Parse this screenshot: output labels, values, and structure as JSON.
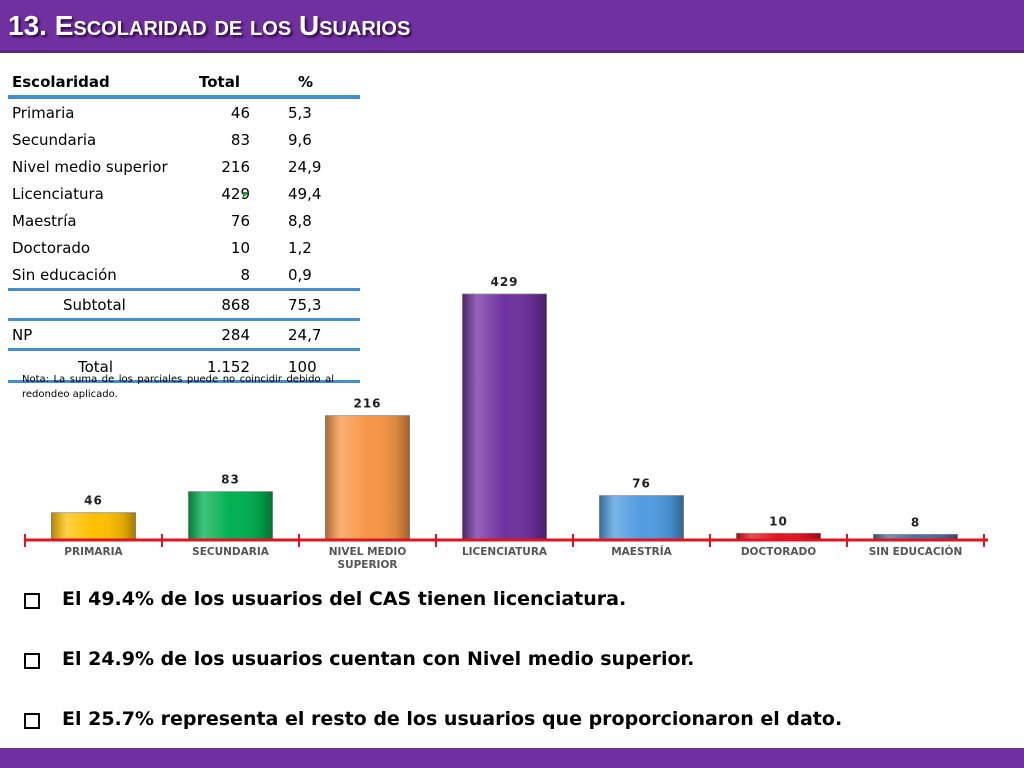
{
  "title": "13. Escolaridad de los Usuarios",
  "table": {
    "headers": [
      "Escolaridad",
      "Total",
      "%"
    ],
    "rows": [
      {
        "label": "Primaria",
        "total": "46",
        "pct": "5,3"
      },
      {
        "label": "Secundaria",
        "total": "83",
        "pct": "9,6"
      },
      {
        "label": "Nivel medio superior",
        "total": "216",
        "pct": "24,9"
      },
      {
        "label": "Licenciatura",
        "total": "429",
        "pct": "49,4"
      },
      {
        "label": "Maestría",
        "total": "76",
        "pct": "8,8"
      },
      {
        "label": "Doctorado",
        "total": "10",
        "pct": "1,2"
      },
      {
        "label": "Sin educación",
        "total": "8",
        "pct": "0,9"
      }
    ],
    "subtotal": {
      "label": "Subtotal",
      "total": "868",
      "pct": "75,3"
    },
    "np": {
      "label": "NP",
      "total": "284",
      "pct": "24,7"
    },
    "total": {
      "label": "Total",
      "total": "1.152",
      "pct": "100"
    },
    "note": "Nota: La suma de los parciales puede no coincidir debido al redondeo aplicado."
  },
  "chart_data": {
    "type": "bar",
    "categories": [
      "PRIMARIA",
      "SECUNDARIA",
      "NIVEL MEDIO SUPERIOR",
      "LICENCIATURA",
      "MAESTRÍA",
      "DOCTORADO",
      "SIN EDUCACIÓN"
    ],
    "values": [
      46,
      83,
      216,
      429,
      76,
      10,
      8
    ],
    "colors": [
      "#ffc000",
      "#00b050",
      "#f79646",
      "#7030a0",
      "#4f9be0",
      "#e0141e",
      "#4a6fa5"
    ],
    "axis_color": "#e0141e",
    "title": "",
    "xlabel": "",
    "ylabel": "",
    "ylim": [
      0,
      429
    ],
    "grid": false,
    "legend": "none"
  },
  "bullets": [
    "El 49.4% de los usuarios del CAS tienen licenciatura.",
    "El 24.9% de los usuarios cuentan con Nivel medio superior.",
    "El  25.7% representa el resto de los usuarios que proporcionaron el dato."
  ]
}
